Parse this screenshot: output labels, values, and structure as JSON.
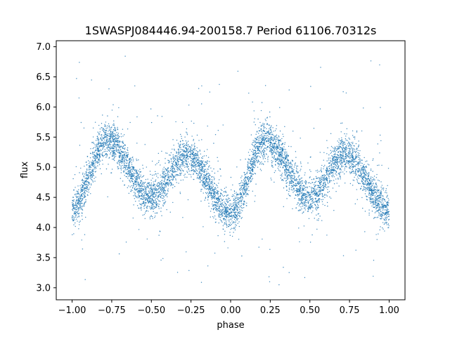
{
  "chart_data": {
    "type": "scatter",
    "title": "1SWASPJ084446.94-200158.7 Period 61106.70312s",
    "xlabel": "phase",
    "ylabel": "flux",
    "xlim": [
      -1.1,
      1.1
    ],
    "ylim": [
      2.8,
      7.1
    ],
    "xticks": [
      -1.0,
      -0.75,
      -0.5,
      -0.25,
      0.0,
      0.25,
      0.5,
      0.75,
      1.0
    ],
    "xtick_labels": [
      "−1.00",
      "−0.75",
      "−0.50",
      "−0.25",
      "0.00",
      "0.25",
      "0.50",
      "0.75",
      "1.00"
    ],
    "yticks": [
      3.0,
      3.5,
      4.0,
      4.5,
      5.0,
      5.5,
      6.0,
      6.5,
      7.0
    ],
    "ytick_labels": [
      "3.0",
      "3.5",
      "4.0",
      "4.5",
      "5.0",
      "5.5",
      "6.0",
      "6.5",
      "7.0"
    ],
    "grid": false,
    "legend": "none",
    "marker_color": "#1f77b4",
    "light_curve": {
      "period_in_phase": 1.0,
      "phase_range": [
        -1.0,
        1.0
      ],
      "maxima": [
        {
          "phase": -0.78,
          "flux": 5.45
        },
        {
          "phase": -0.28,
          "flux": 5.2
        },
        {
          "phase": 0.22,
          "flux": 5.45
        },
        {
          "phase": 0.72,
          "flux": 5.2
        }
      ],
      "minima": [
        {
          "phase": -1.0,
          "flux": 4.3
        },
        {
          "phase": -0.5,
          "flux": 4.5
        },
        {
          "phase": 0.0,
          "flux": 4.25
        },
        {
          "phase": 0.5,
          "flux": 4.5
        },
        {
          "phase": 1.0,
          "flux": 4.3
        }
      ],
      "scatter_sigma": 0.15,
      "outlier_range": [
        3.0,
        6.9
      ]
    }
  }
}
